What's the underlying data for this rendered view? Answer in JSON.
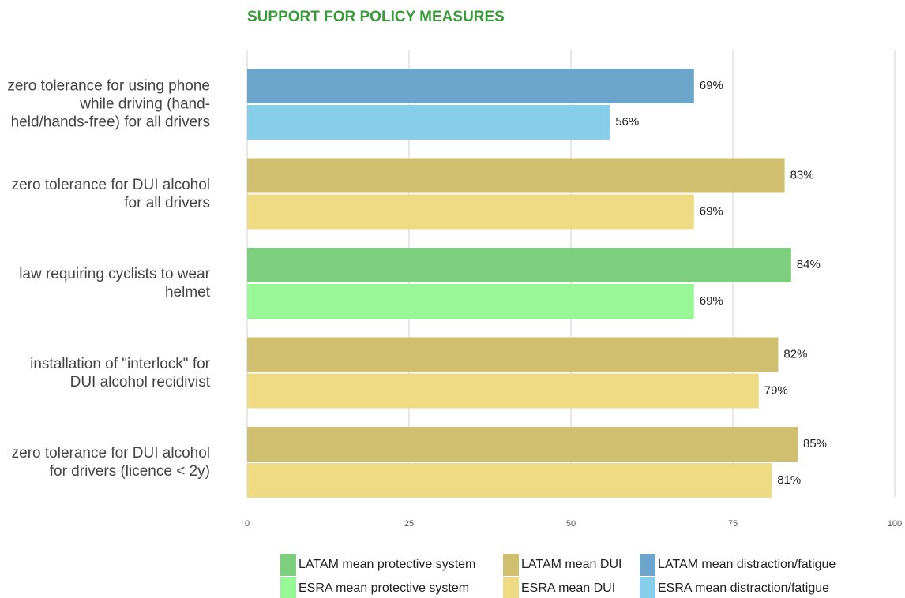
{
  "chart_data": {
    "type": "bar",
    "orientation": "horizontal",
    "title": "SUPPORT FOR POLICY MEASURES",
    "categories": [
      "zero tolerance for using phone while driving (hand-held/hands-free) for all drivers",
      "zero tolerance for DUI alcohol for all drivers",
      "law requiring cyclists to wear helmet",
      "installation of \"interlock\" for DUI alcohol recidivist",
      "zero tolerance for DUI alcohol for drivers (licence < 2y)"
    ],
    "series": [
      {
        "name": "LATAM mean protective system",
        "color": "#7dcf7d",
        "values": [
          null,
          null,
          84,
          null,
          null
        ],
        "value_labels": [
          null,
          null,
          "84%",
          null,
          null
        ]
      },
      {
        "name": "ESRA mean protective system",
        "color": "#98f898",
        "values": [
          null,
          null,
          69,
          null,
          null
        ],
        "value_labels": [
          null,
          null,
          "69%",
          null,
          null
        ]
      },
      {
        "name": "LATAM mean DUI",
        "color": "#cfbf6f",
        "values": [
          null,
          83,
          null,
          82,
          85
        ],
        "value_labels": [
          null,
          "83%",
          null,
          "82%",
          "85%"
        ]
      },
      {
        "name": "ESRA mean DUI",
        "color": "#eedb84",
        "values": [
          null,
          69,
          null,
          79,
          81
        ],
        "value_labels": [
          null,
          "69%",
          null,
          "79%",
          "81%"
        ]
      },
      {
        "name": "LATAM mean distraction/fatigue",
        "color": "#6ca4cc",
        "values": [
          69,
          null,
          null,
          null,
          null
        ],
        "value_labels": [
          "69%",
          null,
          null,
          null,
          null
        ]
      },
      {
        "name": "ESRA mean distraction/fatigue",
        "color": "#87ceeb",
        "values": [
          56,
          null,
          null,
          null,
          null
        ],
        "value_labels": [
          "56%",
          null,
          null,
          null,
          null
        ]
      }
    ],
    "xlim": [
      0,
      100
    ],
    "xticks": [
      0,
      25,
      50,
      75,
      100
    ],
    "grid": true,
    "legend": "bottom"
  }
}
